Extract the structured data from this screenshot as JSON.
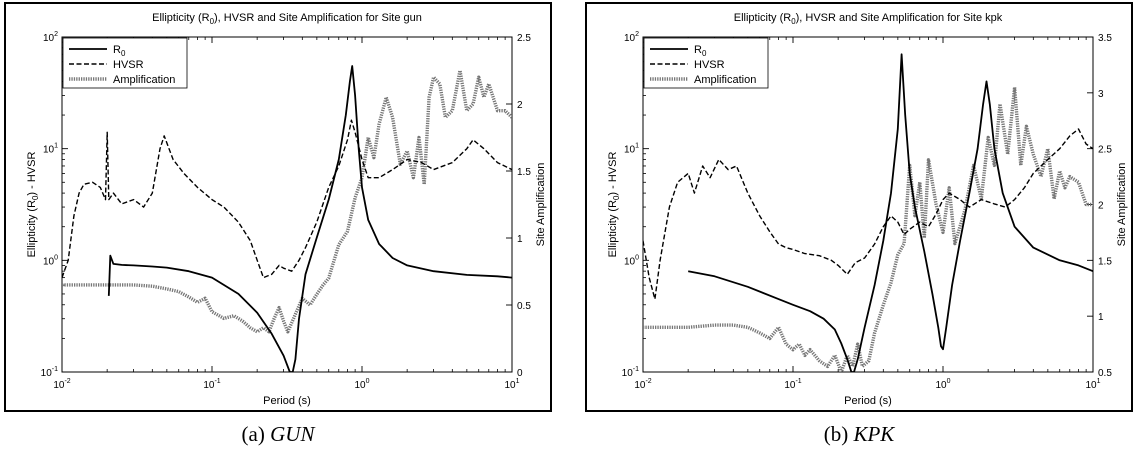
{
  "chart_data": [
    {
      "type": "line",
      "title": "Ellipticity (R0), HVSR and Site Amplification for Site gun",
      "title_parts": {
        "pre": "Ellipticity (R",
        "sub": "0",
        "post": "), HVSR and Site Amplification for Site gun"
      },
      "xlabel": "Period (s)",
      "ylabel_left": "Ellipticity (R0) - HVSR",
      "ylabel_left_parts": {
        "pre": "Ellipticity (R",
        "sub": "0",
        "post": ") - HVSR"
      },
      "ylabel_right": "Site Amplification",
      "x_scale": "log",
      "xlim": [
        0.01,
        10
      ],
      "y_left_scale": "log",
      "ylim_left": [
        0.1,
        100
      ],
      "ylim_right": [
        0,
        2.5
      ],
      "x_ticks": [
        {
          "base": "10",
          "exp": "-2"
        },
        {
          "base": "10",
          "exp": "-1"
        },
        {
          "base": "10",
          "exp": "0"
        },
        {
          "base": "10",
          "exp": "1"
        }
      ],
      "y_left_ticks": [
        {
          "base": "10",
          "exp": "-1"
        },
        {
          "base": "10",
          "exp": "0"
        },
        {
          "base": "10",
          "exp": "1"
        },
        {
          "base": "10",
          "exp": "2"
        }
      ],
      "y_right_ticks": [
        "0",
        "0.5",
        "1",
        "1.5",
        "2",
        "2.5"
      ],
      "legend": {
        "placement": "top-left",
        "entries": [
          {
            "label": "R",
            "sub": "0"
          },
          {
            "label": "HVSR"
          },
          {
            "label": "Amplification"
          }
        ]
      },
      "series": [
        {
          "name": "R0",
          "axis": "left",
          "style": "solid",
          "x": [
            0.0205,
            0.021,
            0.022,
            0.025,
            0.03,
            0.04,
            0.05,
            0.07,
            0.1,
            0.15,
            0.2,
            0.25,
            0.3,
            0.33,
            0.345,
            0.36,
            0.38,
            0.42,
            0.5,
            0.6,
            0.7,
            0.78,
            0.83,
            0.86,
            0.9,
            0.95,
            1.0,
            1.1,
            1.3,
            1.6,
            2,
            3,
            5,
            8,
            10
          ],
          "y": [
            0.48,
            1.1,
            0.93,
            0.91,
            0.9,
            0.88,
            0.86,
            0.8,
            0.7,
            0.5,
            0.34,
            0.22,
            0.14,
            0.1,
            0.1,
            0.13,
            0.3,
            0.75,
            1.6,
            3.5,
            8,
            20,
            40,
            55,
            30,
            10,
            4.5,
            2.3,
            1.4,
            1.05,
            0.9,
            0.8,
            0.74,
            0.72,
            0.7
          ]
        },
        {
          "name": "HVSR",
          "axis": "left",
          "style": "dashed",
          "x": [
            0.01,
            0.011,
            0.012,
            0.013,
            0.014,
            0.016,
            0.018,
            0.0195,
            0.02,
            0.0205,
            0.022,
            0.025,
            0.03,
            0.035,
            0.04,
            0.045,
            0.048,
            0.055,
            0.065,
            0.08,
            0.1,
            0.12,
            0.15,
            0.18,
            0.2,
            0.22,
            0.25,
            0.28,
            0.3,
            0.34,
            0.38,
            0.42,
            0.5,
            0.6,
            0.7,
            0.8,
            0.85,
            0.9,
            1.0,
            1.1,
            1.3,
            1.6,
            2,
            2.5,
            3,
            4,
            5,
            5.5,
            6.5,
            8,
            10
          ],
          "y": [
            0.7,
            1.0,
            2.5,
            4.0,
            4.8,
            5.0,
            4.5,
            3.5,
            14,
            3.5,
            4.0,
            3.2,
            3.5,
            3.0,
            4.0,
            10,
            13,
            8,
            6,
            4.5,
            3.5,
            3.0,
            2.2,
            1.5,
            1.0,
            0.7,
            0.75,
            0.9,
            0.85,
            0.8,
            1.0,
            1.3,
            2.2,
            4.5,
            7,
            12,
            18,
            14,
            8,
            5.5,
            5.5,
            6.5,
            8,
            7.5,
            6.5,
            7.5,
            10,
            12,
            10,
            7.5,
            6.5
          ]
        },
        {
          "name": "Amplification",
          "axis": "right",
          "style": "dotted",
          "x": [
            0.01,
            0.02,
            0.03,
            0.04,
            0.05,
            0.06,
            0.07,
            0.08,
            0.09,
            0.1,
            0.12,
            0.14,
            0.16,
            0.18,
            0.2,
            0.22,
            0.24,
            0.26,
            0.28,
            0.3,
            0.32,
            0.35,
            0.4,
            0.45,
            0.5,
            0.55,
            0.6,
            0.7,
            0.8,
            0.9,
            1.0,
            1.1,
            1.2,
            1.3,
            1.45,
            1.6,
            1.8,
            2.0,
            2.2,
            2.4,
            2.6,
            2.8,
            3.0,
            3.3,
            3.6,
            4.0,
            4.5,
            5.0,
            5.5,
            6.0,
            6.5,
            7.0,
            8.0,
            9.0,
            10
          ],
          "y": [
            0.65,
            0.65,
            0.65,
            0.64,
            0.62,
            0.6,
            0.56,
            0.52,
            0.55,
            0.45,
            0.4,
            0.42,
            0.38,
            0.33,
            0.3,
            0.33,
            0.3,
            0.4,
            0.48,
            0.38,
            0.3,
            0.4,
            0.55,
            0.5,
            0.58,
            0.65,
            0.7,
            0.95,
            1.05,
            1.3,
            1.45,
            1.75,
            1.6,
            1.85,
            2.05,
            1.9,
            1.55,
            1.65,
            1.45,
            1.75,
            1.4,
            2.05,
            2.2,
            2.15,
            1.9,
            1.95,
            2.25,
            1.95,
            2.0,
            2.2,
            2.05,
            2.15,
            1.95,
            1.95,
            1.9
          ]
        }
      ]
    },
    {
      "type": "line",
      "title": "Ellipticity (R0), HVSR and Site Amplification for Site kpk",
      "title_parts": {
        "pre": "Ellipticity (R",
        "sub": "0",
        "post": "), HVSR and Site Amplification for Site kpk"
      },
      "xlabel": "Period (s)",
      "ylabel_left": "Ellipticity (R0) - HVSR",
      "ylabel_left_parts": {
        "pre": "Ellipticity (R",
        "sub": "0",
        "post": ") - HVSR"
      },
      "ylabel_right": "Site Amplification",
      "x_scale": "log",
      "xlim": [
        0.01,
        10
      ],
      "y_left_scale": "log",
      "ylim_left": [
        0.1,
        100
      ],
      "ylim_right": [
        0.5,
        3.5
      ],
      "x_ticks": [
        {
          "base": "10",
          "exp": "-2"
        },
        {
          "base": "10",
          "exp": "-1"
        },
        {
          "base": "10",
          "exp": "0"
        },
        {
          "base": "10",
          "exp": "1"
        }
      ],
      "y_left_ticks": [
        {
          "base": "10",
          "exp": "-1"
        },
        {
          "base": "10",
          "exp": "0"
        },
        {
          "base": "10",
          "exp": "1"
        },
        {
          "base": "10",
          "exp": "2"
        }
      ],
      "y_right_ticks": [
        "0.5",
        "1",
        "1.5",
        "2",
        "2.5",
        "3",
        "3.5"
      ],
      "legend": {
        "placement": "top-left",
        "entries": [
          {
            "label": "R",
            "sub": "0"
          },
          {
            "label": "HVSR"
          },
          {
            "label": "Amplification"
          }
        ]
      },
      "series": [
        {
          "name": "R0",
          "axis": "left",
          "style": "solid",
          "x": [
            0.02,
            0.03,
            0.05,
            0.08,
            0.1,
            0.13,
            0.16,
            0.19,
            0.21,
            0.23,
            0.245,
            0.255,
            0.27,
            0.3,
            0.35,
            0.4,
            0.45,
            0.5,
            0.53,
            0.56,
            0.6,
            0.65,
            0.75,
            0.85,
            0.93,
            0.97,
            1.0,
            1.05,
            1.15,
            1.3,
            1.5,
            1.7,
            1.85,
            1.95,
            2.05,
            2.2,
            2.5,
            3,
            4,
            6,
            8,
            10
          ],
          "y": [
            0.8,
            0.72,
            0.58,
            0.45,
            0.4,
            0.35,
            0.3,
            0.24,
            0.18,
            0.13,
            0.1,
            0.1,
            0.13,
            0.25,
            0.6,
            1.5,
            4,
            15,
            70,
            20,
            6,
            3,
            1.2,
            0.5,
            0.25,
            0.17,
            0.16,
            0.25,
            0.6,
            1.5,
            4,
            10,
            25,
            40,
            25,
            10,
            4,
            2,
            1.3,
            1.0,
            0.9,
            0.8
          ]
        },
        {
          "name": "HVSR",
          "axis": "left",
          "style": "dashed",
          "x": [
            0.01,
            0.011,
            0.012,
            0.013,
            0.015,
            0.017,
            0.02,
            0.022,
            0.025,
            0.028,
            0.032,
            0.037,
            0.042,
            0.05,
            0.06,
            0.07,
            0.08,
            0.09,
            0.1,
            0.12,
            0.15,
            0.18,
            0.2,
            0.23,
            0.26,
            0.3,
            0.35,
            0.4,
            0.45,
            0.5,
            0.55,
            0.6,
            0.7,
            0.8,
            0.9,
            1.0,
            1.1,
            1.3,
            1.5,
            1.8,
            2.2,
            2.6,
            3.0,
            3.5,
            4.0,
            5.0,
            6.0,
            7.0,
            8.0,
            9.0,
            10
          ],
          "y": [
            1.5,
            0.7,
            0.45,
            1.0,
            3.0,
            5.0,
            6.0,
            4.0,
            7.0,
            5.5,
            8.0,
            6.5,
            7.0,
            4.0,
            2.5,
            1.8,
            1.4,
            1.3,
            1.25,
            1.15,
            1.1,
            1.0,
            0.9,
            0.75,
            0.95,
            1.05,
            1.4,
            2.0,
            2.5,
            2.2,
            1.7,
            1.9,
            2.2,
            2.0,
            2.6,
            3.5,
            4.0,
            3.5,
            3.0,
            3.5,
            3.2,
            3.0,
            3.5,
            4.5,
            6.0,
            8.0,
            10,
            13,
            15,
            11,
            10
          ]
        },
        {
          "name": "Amplification",
          "axis": "right",
          "style": "dotted",
          "x": [
            0.01,
            0.02,
            0.03,
            0.04,
            0.05,
            0.06,
            0.07,
            0.08,
            0.09,
            0.1,
            0.11,
            0.12,
            0.13,
            0.15,
            0.17,
            0.19,
            0.21,
            0.23,
            0.25,
            0.27,
            0.29,
            0.32,
            0.35,
            0.4,
            0.45,
            0.5,
            0.55,
            0.6,
            0.65,
            0.7,
            0.75,
            0.8,
            0.9,
            1.0,
            1.1,
            1.2,
            1.4,
            1.6,
            1.8,
            2.0,
            2.2,
            2.4,
            2.7,
            3.0,
            3.3,
            3.6,
            4.0,
            4.5,
            5.0,
            5.5,
            6.0,
            6.5,
            7.0,
            8.0,
            9.0,
            10
          ],
          "y": [
            0.9,
            0.9,
            0.92,
            0.92,
            0.9,
            0.85,
            0.8,
            0.9,
            0.75,
            0.7,
            0.75,
            0.65,
            0.7,
            0.6,
            0.55,
            0.65,
            0.5,
            0.65,
            0.55,
            0.75,
            0.55,
            0.6,
            0.85,
            1.1,
            1.3,
            1.55,
            1.65,
            2.35,
            1.9,
            2.2,
            1.7,
            2.4,
            2.0,
            1.75,
            2.15,
            1.65,
            1.95,
            2.35,
            2.05,
            2.6,
            2.35,
            2.9,
            2.45,
            3.05,
            2.35,
            2.7,
            2.45,
            2.25,
            2.5,
            2.05,
            2.3,
            2.15,
            2.25,
            2.2,
            2.0,
            2.0
          ]
        }
      ]
    }
  ],
  "captions": [
    {
      "tag": "(a)",
      "name": "GUN"
    },
    {
      "tag": "(b)",
      "name": "KPK"
    }
  ]
}
